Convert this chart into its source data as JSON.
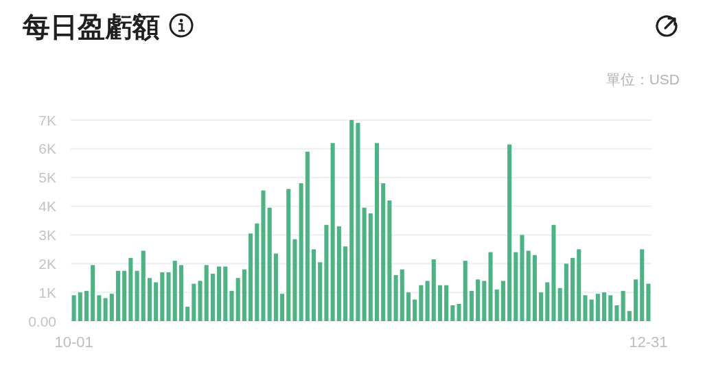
{
  "chart_data": {
    "type": "bar",
    "title": "每日盈虧額",
    "annotations": [
      "單位：USD"
    ],
    "categories": [
      "10-01",
      null,
      null,
      null,
      null,
      null,
      null,
      null,
      null,
      null,
      null,
      null,
      null,
      null,
      null,
      null,
      null,
      null,
      null,
      null,
      null,
      null,
      null,
      null,
      null,
      null,
      null,
      null,
      null,
      null,
      null,
      null,
      null,
      null,
      null,
      null,
      null,
      null,
      null,
      null,
      null,
      null,
      null,
      null,
      null,
      null,
      null,
      null,
      null,
      null,
      null,
      null,
      null,
      null,
      null,
      null,
      null,
      null,
      null,
      null,
      null,
      null,
      null,
      null,
      null,
      null,
      null,
      null,
      null,
      null,
      null,
      null,
      null,
      null,
      null,
      null,
      null,
      null,
      null,
      null,
      null,
      null,
      null,
      null,
      null,
      null,
      null,
      null,
      null,
      null,
      null,
      "12-31"
    ],
    "values": [
      900,
      1000,
      1050,
      1950,
      900,
      800,
      950,
      1750,
      1750,
      2200,
      1750,
      2450,
      1500,
      1350,
      1700,
      1700,
      2100,
      1950,
      500,
      1300,
      1400,
      1950,
      1650,
      1900,
      1900,
      1050,
      1500,
      1800,
      3050,
      3400,
      4550,
      3950,
      2350,
      950,
      4600,
      2850,
      4800,
      5900,
      2500,
      2050,
      3350,
      6200,
      3300,
      2600,
      7000,
      6900,
      3950,
      3750,
      6200,
      4800,
      4200,
      1600,
      1800,
      1000,
      750,
      1250,
      1400,
      2150,
      1250,
      1250,
      550,
      600,
      2100,
      1050,
      1450,
      1400,
      2400,
      1100,
      1400,
      6150,
      2400,
      3000,
      2450,
      2300,
      1000,
      1350,
      3350,
      1150,
      2000,
      2200,
      2500,
      900,
      750,
      950,
      1000,
      900,
      550,
      1050,
      350,
      1450,
      2500,
      1300
    ],
    "color": "#4cb383",
    "ylim": [
      0,
      7000
    ],
    "yticks": [
      {
        "value": 0,
        "label": "0.00"
      },
      {
        "value": 1000,
        "label": "1K"
      },
      {
        "value": 2000,
        "label": "2K"
      },
      {
        "value": 3000,
        "label": "3K"
      },
      {
        "value": 4000,
        "label": "4K"
      },
      {
        "value": 5000,
        "label": "5K"
      },
      {
        "value": 6000,
        "label": "6K"
      },
      {
        "value": 7000,
        "label": "7K"
      }
    ],
    "grid": "y"
  }
}
